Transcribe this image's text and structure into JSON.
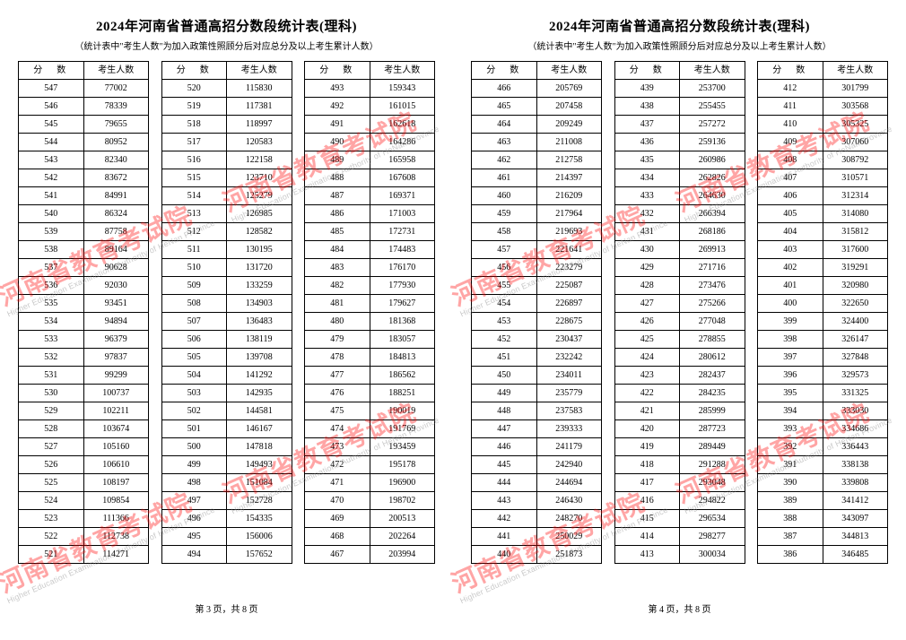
{
  "title": "2024年河南省普通高招分数段统计表(理科)",
  "subtitle": "（统计表中\"考生人数\"为加入政策性照顾分后对应总分及以上考生累计人数）",
  "header_score": "分　数",
  "header_count": "考生人数",
  "page3_label": "第 3 页，共 8 页",
  "page4_label": "第 4 页，共 8 页",
  "watermark_zh": "河南省教育考试院",
  "watermark_en": "Higher Education Examinations Authority of HeNan Province",
  "block1": [
    {
      "s": "547",
      "c": "77002"
    },
    {
      "s": "546",
      "c": "78339"
    },
    {
      "s": "545",
      "c": "79655"
    },
    {
      "s": "544",
      "c": "80952"
    },
    {
      "s": "543",
      "c": "82340"
    },
    {
      "s": "542",
      "c": "83672"
    },
    {
      "s": "541",
      "c": "84991"
    },
    {
      "s": "540",
      "c": "86324"
    },
    {
      "s": "539",
      "c": "87758"
    },
    {
      "s": "538",
      "c": "89164"
    },
    {
      "s": "537",
      "c": "90628"
    },
    {
      "s": "536",
      "c": "92030"
    },
    {
      "s": "535",
      "c": "93451"
    },
    {
      "s": "534",
      "c": "94894"
    },
    {
      "s": "533",
      "c": "96379"
    },
    {
      "s": "532",
      "c": "97837"
    },
    {
      "s": "531",
      "c": "99299"
    },
    {
      "s": "530",
      "c": "100737"
    },
    {
      "s": "529",
      "c": "102211"
    },
    {
      "s": "528",
      "c": "103674"
    },
    {
      "s": "527",
      "c": "105160"
    },
    {
      "s": "526",
      "c": "106610"
    },
    {
      "s": "525",
      "c": "108197"
    },
    {
      "s": "524",
      "c": "109854"
    },
    {
      "s": "523",
      "c": "111366"
    },
    {
      "s": "522",
      "c": "112738"
    },
    {
      "s": "521",
      "c": "114271"
    }
  ],
  "block2": [
    {
      "s": "520",
      "c": "115830"
    },
    {
      "s": "519",
      "c": "117381"
    },
    {
      "s": "518",
      "c": "118997"
    },
    {
      "s": "517",
      "c": "120583"
    },
    {
      "s": "516",
      "c": "122158"
    },
    {
      "s": "515",
      "c": "123710"
    },
    {
      "s": "514",
      "c": "125279"
    },
    {
      "s": "513",
      "c": "126985"
    },
    {
      "s": "512",
      "c": "128582"
    },
    {
      "s": "511",
      "c": "130195"
    },
    {
      "s": "510",
      "c": "131720"
    },
    {
      "s": "509",
      "c": "133259"
    },
    {
      "s": "508",
      "c": "134903"
    },
    {
      "s": "507",
      "c": "136483"
    },
    {
      "s": "506",
      "c": "138119"
    },
    {
      "s": "505",
      "c": "139708"
    },
    {
      "s": "504",
      "c": "141292"
    },
    {
      "s": "503",
      "c": "142935"
    },
    {
      "s": "502",
      "c": "144581"
    },
    {
      "s": "501",
      "c": "146167"
    },
    {
      "s": "500",
      "c": "147818"
    },
    {
      "s": "499",
      "c": "149493"
    },
    {
      "s": "498",
      "c": "151084"
    },
    {
      "s": "497",
      "c": "152728"
    },
    {
      "s": "496",
      "c": "154335"
    },
    {
      "s": "495",
      "c": "156006"
    },
    {
      "s": "494",
      "c": "157652"
    }
  ],
  "block3": [
    {
      "s": "493",
      "c": "159343"
    },
    {
      "s": "492",
      "c": "161015"
    },
    {
      "s": "491",
      "c": "162618"
    },
    {
      "s": "490",
      "c": "164286"
    },
    {
      "s": "489",
      "c": "165958"
    },
    {
      "s": "488",
      "c": "167608"
    },
    {
      "s": "487",
      "c": "169371"
    },
    {
      "s": "486",
      "c": "171003"
    },
    {
      "s": "485",
      "c": "172731"
    },
    {
      "s": "484",
      "c": "174483"
    },
    {
      "s": "483",
      "c": "176170"
    },
    {
      "s": "482",
      "c": "177930"
    },
    {
      "s": "481",
      "c": "179627"
    },
    {
      "s": "480",
      "c": "181368"
    },
    {
      "s": "479",
      "c": "183057"
    },
    {
      "s": "478",
      "c": "184813"
    },
    {
      "s": "477",
      "c": "186562"
    },
    {
      "s": "476",
      "c": "188251"
    },
    {
      "s": "475",
      "c": "190019"
    },
    {
      "s": "474",
      "c": "191769"
    },
    {
      "s": "473",
      "c": "193459"
    },
    {
      "s": "472",
      "c": "195178"
    },
    {
      "s": "471",
      "c": "196900"
    },
    {
      "s": "470",
      "c": "198702"
    },
    {
      "s": "469",
      "c": "200513"
    },
    {
      "s": "468",
      "c": "202264"
    },
    {
      "s": "467",
      "c": "203994"
    }
  ],
  "block4": [
    {
      "s": "466",
      "c": "205769"
    },
    {
      "s": "465",
      "c": "207458"
    },
    {
      "s": "464",
      "c": "209249"
    },
    {
      "s": "463",
      "c": "211008"
    },
    {
      "s": "462",
      "c": "212758"
    },
    {
      "s": "461",
      "c": "214397"
    },
    {
      "s": "460",
      "c": "216209"
    },
    {
      "s": "459",
      "c": "217964"
    },
    {
      "s": "458",
      "c": "219693"
    },
    {
      "s": "457",
      "c": "221641"
    },
    {
      "s": "456",
      "c": "223279"
    },
    {
      "s": "455",
      "c": "225087"
    },
    {
      "s": "454",
      "c": "226897"
    },
    {
      "s": "453",
      "c": "228675"
    },
    {
      "s": "452",
      "c": "230437"
    },
    {
      "s": "451",
      "c": "232242"
    },
    {
      "s": "450",
      "c": "234011"
    },
    {
      "s": "449",
      "c": "235779"
    },
    {
      "s": "448",
      "c": "237583"
    },
    {
      "s": "447",
      "c": "239333"
    },
    {
      "s": "446",
      "c": "241179"
    },
    {
      "s": "445",
      "c": "242940"
    },
    {
      "s": "444",
      "c": "244694"
    },
    {
      "s": "443",
      "c": "246430"
    },
    {
      "s": "442",
      "c": "248270"
    },
    {
      "s": "441",
      "c": "250029"
    },
    {
      "s": "440",
      "c": "251873"
    }
  ],
  "block5": [
    {
      "s": "439",
      "c": "253700"
    },
    {
      "s": "438",
      "c": "255455"
    },
    {
      "s": "437",
      "c": "257272"
    },
    {
      "s": "436",
      "c": "259136"
    },
    {
      "s": "435",
      "c": "260986"
    },
    {
      "s": "434",
      "c": "262826"
    },
    {
      "s": "433",
      "c": "264630"
    },
    {
      "s": "432",
      "c": "266394"
    },
    {
      "s": "431",
      "c": "268186"
    },
    {
      "s": "430",
      "c": "269913"
    },
    {
      "s": "429",
      "c": "271716"
    },
    {
      "s": "428",
      "c": "273476"
    },
    {
      "s": "427",
      "c": "275266"
    },
    {
      "s": "426",
      "c": "277048"
    },
    {
      "s": "425",
      "c": "278855"
    },
    {
      "s": "424",
      "c": "280612"
    },
    {
      "s": "423",
      "c": "282437"
    },
    {
      "s": "422",
      "c": "284235"
    },
    {
      "s": "421",
      "c": "285999"
    },
    {
      "s": "420",
      "c": "287723"
    },
    {
      "s": "419",
      "c": "289449"
    },
    {
      "s": "418",
      "c": "291288"
    },
    {
      "s": "417",
      "c": "293048"
    },
    {
      "s": "416",
      "c": "294822"
    },
    {
      "s": "415",
      "c": "296534"
    },
    {
      "s": "414",
      "c": "298277"
    },
    {
      "s": "413",
      "c": "300034"
    }
  ],
  "block6": [
    {
      "s": "412",
      "c": "301799"
    },
    {
      "s": "411",
      "c": "303568"
    },
    {
      "s": "410",
      "c": "305325"
    },
    {
      "s": "409",
      "c": "307060"
    },
    {
      "s": "408",
      "c": "308792"
    },
    {
      "s": "407",
      "c": "310571"
    },
    {
      "s": "406",
      "c": "312314"
    },
    {
      "s": "405",
      "c": "314080"
    },
    {
      "s": "404",
      "c": "315812"
    },
    {
      "s": "403",
      "c": "317600"
    },
    {
      "s": "402",
      "c": "319291"
    },
    {
      "s": "401",
      "c": "320980"
    },
    {
      "s": "400",
      "c": "322650"
    },
    {
      "s": "399",
      "c": "324400"
    },
    {
      "s": "398",
      "c": "326147"
    },
    {
      "s": "397",
      "c": "327848"
    },
    {
      "s": "396",
      "c": "329573"
    },
    {
      "s": "395",
      "c": "331325"
    },
    {
      "s": "394",
      "c": "333030"
    },
    {
      "s": "393",
      "c": "334686"
    },
    {
      "s": "392",
      "c": "336443"
    },
    {
      "s": "391",
      "c": "338138"
    },
    {
      "s": "390",
      "c": "339808"
    },
    {
      "s": "389",
      "c": "341412"
    },
    {
      "s": "388",
      "c": "343097"
    },
    {
      "s": "387",
      "c": "344813"
    },
    {
      "s": "386",
      "c": "346485"
    }
  ]
}
